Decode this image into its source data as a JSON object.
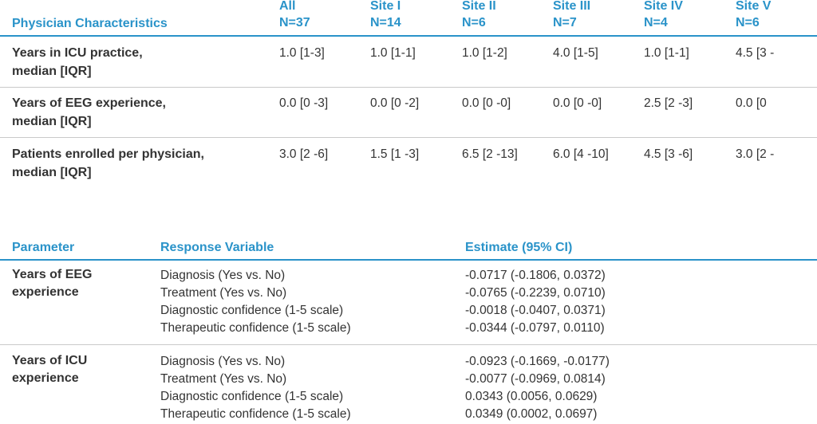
{
  "table1": {
    "header": {
      "label": "Physician Characteristics",
      "columns": [
        {
          "name": "All",
          "n": "N=37"
        },
        {
          "name": "Site I",
          "n": "N=14"
        },
        {
          "name": "Site II",
          "n": "N=6"
        },
        {
          "name": "Site III",
          "n": "N=7"
        },
        {
          "name": "Site IV",
          "n": "N=4"
        },
        {
          "name": "Site V",
          "n": "N=6"
        }
      ]
    },
    "rows": [
      {
        "label1": "Years in ICU practice,",
        "label2": "median [IQR]",
        "values": [
          "1.0 [1-3]",
          "1.0 [1-1]",
          "1.0 [1-2]",
          "4.0 [1-5]",
          "1.0 [1-1]",
          "4.5 [3 -"
        ]
      },
      {
        "label1": "Years of EEG experience,",
        "label2": "median [IQR]",
        "values": [
          "0.0 [0 -3]",
          "0.0 [0 -2]",
          "0.0 [0 -0]",
          "0.0 [0 -0]",
          "2.5 [2 -3]",
          "0.0 [0"
        ]
      },
      {
        "label1": "Patients enrolled per physician,",
        "label2": "median [IQR]",
        "values": [
          "3.0 [2 -6]",
          "1.5 [1 -3]",
          "6.5 [2 -13]",
          "6.0 [4 -10]",
          "4.5 [3 -6]",
          "3.0 [2 -"
        ]
      }
    ]
  },
  "table2": {
    "header": {
      "parameter": "Parameter",
      "response": "Response Variable",
      "estimate": "Estimate (95% CI)"
    },
    "groups": [
      {
        "label1": "Years of EEG",
        "label2": "experience",
        "rows": [
          {
            "response": "Diagnosis (Yes vs. No)",
            "estimate": "-0.0717 (-0.1806, 0.0372)"
          },
          {
            "response": "Treatment (Yes vs. No)",
            "estimate": "-0.0765 (-0.2239, 0.0710)"
          },
          {
            "response": "Diagnostic confidence (1-5 scale)",
            "estimate": "-0.0018 (-0.0407, 0.0371)"
          },
          {
            "response": "Therapeutic confidence (1-5 scale)",
            "estimate": "-0.0344 (-0.0797, 0.0110)"
          }
        ]
      },
      {
        "label1": "Years of ICU",
        "label2": "experience",
        "rows": [
          {
            "response": "Diagnosis (Yes vs. No)",
            "estimate": "-0.0923 (-0.1669, -0.0177)"
          },
          {
            "response": "Treatment (Yes vs. No)",
            "estimate": "-0.0077 (-0.0969, 0.0814)"
          },
          {
            "response": "Diagnostic confidence (1-5 scale)",
            "estimate": "0.0343 (0.0056, 0.0629)"
          },
          {
            "response": "Therapeutic confidence (1-5 scale)",
            "estimate": "0.0349 (0.0002, 0.0697)"
          }
        ]
      }
    ]
  }
}
